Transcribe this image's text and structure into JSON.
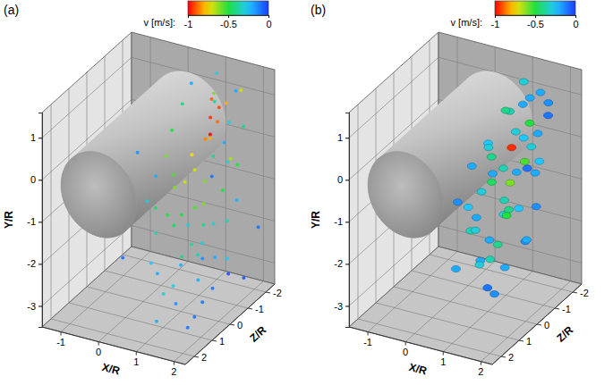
{
  "chart_data": [
    {
      "type": "scatter",
      "title": "(a)",
      "marker": "dot",
      "grid": true,
      "xlabel": "X/R",
      "ylabel": "Y/R",
      "zlabel": "Z/R",
      "xlim": [
        -1.5,
        2.3
      ],
      "ylim": [
        -3.5,
        1.6
      ],
      "zlim": [
        -2.5,
        2.5
      ],
      "xticks": [
        -1,
        0,
        1,
        2
      ],
      "yticks": [
        -3,
        -2,
        -1,
        0,
        1
      ],
      "zticks": [
        2,
        1,
        0,
        -1,
        -2
      ],
      "cylinder": {
        "x": 0,
        "y": 0,
        "radius": 1
      },
      "colorbar": {
        "label": "v [m/s]:",
        "range": [
          -1,
          0
        ],
        "ticks": [
          -1,
          -0.5,
          0
        ]
      },
      "x": [
        1.0,
        1.3,
        0.8,
        1.6,
        1.1,
        1.4,
        0.9,
        1.8,
        1.2,
        1.5,
        1.0,
        1.9,
        1.3,
        1.05,
        1.6,
        1.1,
        2.0,
        1.4,
        1.05,
        1.7,
        1.2,
        1.5,
        1.0,
        1.8,
        1.3,
        0.8,
        1.6,
        2.1,
        1.1,
        1.4,
        1.9,
        1.0,
        1.5,
        1.2,
        1.7,
        0.9,
        1.4,
        2.0,
        1.1,
        1.6,
        1.3,
        0.8,
        1.8,
        1.2,
        1.5,
        1.0,
        1.9,
        1.3,
        1.6,
        1.1,
        1.4,
        1.7,
        0.7,
        1.1,
        2.2,
        2.1,
        0.5,
        1.25,
        1.35,
        1.2,
        1.5,
        1.1,
        1.6,
        1.3,
        1.8,
        0.9,
        2.0,
        1.5,
        0.8,
        1.7
      ],
      "y": [
        1.4,
        1.3,
        1.2,
        1.2,
        1.0,
        0.9,
        0.9,
        0.8,
        0.7,
        0.6,
        0.5,
        0.5,
        0.4,
        0.3,
        0.2,
        0.1,
        0.1,
        0.0,
        -0.1,
        -0.2,
        -0.3,
        -0.4,
        -0.5,
        -0.5,
        -0.6,
        -0.7,
        -0.8,
        -0.9,
        -1.0,
        -1.1,
        -1.2,
        -1.3,
        -1.4,
        -1.5,
        -1.6,
        -1.7,
        -1.8,
        -1.9,
        -2.0,
        -2.1,
        -2.2,
        -2.3,
        -2.4,
        -2.5,
        -2.6,
        -2.7,
        -2.8,
        -2.9,
        -3.0,
        -3.1,
        -3.2,
        -3.3,
        0.9,
        -0.3,
        0.3,
        -2.0,
        -1.5,
        0.8,
        0.6,
        0.2,
        1.0,
        0.0,
        -0.6,
        -0.9,
        -1.5,
        -2.5,
        -3.0,
        -3.4,
        1.5,
        1.5
      ],
      "z": [
        -2.0,
        -1.2,
        -0.5,
        -1.8,
        -1.5,
        -0.8,
        0.3,
        -1.0,
        -2.1,
        -0.3,
        0.8,
        -1.6,
        -1.0,
        1.5,
        0.5,
        -0.4,
        -0.5,
        1.2,
        2.0,
        -1.3,
        0.2,
        1.8,
        -1.8,
        0.9,
        -0.7,
        1.0,
        0.0,
        -0.8,
        1.6,
        -1.5,
        1.3,
        0.4,
        -0.2,
        2.1,
        -1.1,
        -0.6,
        0.8,
        0.2,
        -1.6,
        1.7,
        -0.3,
        0.9,
        -0.9,
        1.4,
        0.1,
        -1.2,
        0.7,
        2.0,
        -0.5,
        0.5,
        -1.8,
        1.1,
        1.8,
        -2.2,
        0.8,
        -2.0,
        2.2,
        -1.6,
        -1.3,
        -1.2,
        -2.3,
        0.6,
        -1.9,
        0.6,
        0.5,
        -0.2,
        -1.4,
        0.3,
        -1.0,
        -0.4
      ],
      "values": [
        -0.3,
        -0.6,
        -0.4,
        -0.2,
        -0.9,
        -0.95,
        -0.5,
        -0.3,
        -0.8,
        -0.85,
        -0.6,
        -0.4,
        -1.0,
        -0.2,
        -0.7,
        -0.75,
        -0.3,
        -0.6,
        -0.3,
        -0.65,
        -0.7,
        -0.5,
        -0.4,
        -0.55,
        -0.6,
        -0.45,
        -0.6,
        -0.2,
        -0.35,
        -0.5,
        -0.4,
        -0.45,
        -0.4,
        -0.25,
        -0.35,
        -0.3,
        -0.4,
        -0.2,
        -0.3,
        -0.3,
        -0.35,
        -0.2,
        -0.25,
        -0.3,
        -0.2,
        -0.15,
        -0.1,
        -0.2,
        -0.1,
        -0.15,
        -0.05,
        -0.1,
        -0.15,
        -0.2,
        -0.1,
        -0.1,
        -0.1,
        -0.92,
        -0.88,
        -0.8,
        -0.7,
        -0.55,
        -0.5,
        -0.5,
        -0.3,
        -0.2,
        -0.05,
        -0.1,
        -0.2,
        -0.35
      ]
    },
    {
      "type": "scatter",
      "title": "(b)",
      "marker": "blob",
      "grid": true,
      "xlabel": "X/R",
      "ylabel": "Y/R",
      "zlabel": "Z/R",
      "xlim": [
        -1.5,
        2.3
      ],
      "ylim": [
        -3.5,
        1.6
      ],
      "zlim": [
        -2.5,
        2.5
      ],
      "xticks": [
        -1,
        0,
        1,
        2
      ],
      "yticks": [
        -3,
        -2,
        -1,
        0,
        1
      ],
      "zticks": [
        2,
        1,
        0,
        -1,
        -2
      ],
      "cylinder": {
        "x": 0,
        "y": 0,
        "radius": 1
      },
      "colorbar": {
        "label": "v [m/s]:",
        "range": [
          -1,
          0
        ],
        "ticks": [
          -1,
          -0.5,
          0
        ]
      },
      "x": [
        1.0,
        1.4,
        1.2,
        1.7,
        0.9,
        1.5,
        1.1,
        1.8,
        1.3,
        1.0,
        1.6,
        1.2,
        1.9,
        1.4,
        1.05,
        1.7,
        1.1,
        1.5,
        1.3,
        1.8,
        1.0,
        1.6,
        1.2,
        1.9,
        1.4,
        1.0,
        1.7,
        1.2,
        1.5,
        1.1,
        1.8,
        1.3,
        1.6,
        1.2,
        1.7,
        1.4,
        1.6,
        1.3,
        1.6,
        1.2,
        1.9,
        1.0,
        1.5,
        1.3,
        1.8,
        1.1,
        1.4,
        1.6,
        1.0,
        1.5
      ],
      "y": [
        1.2,
        1.1,
        1.0,
        0.9,
        0.8,
        0.7,
        0.6,
        0.5,
        0.4,
        0.3,
        0.2,
        0.1,
        0.0,
        -0.1,
        -0.2,
        -0.3,
        -0.4,
        -0.5,
        -0.6,
        -0.7,
        -0.8,
        -0.9,
        -1.0,
        -1.1,
        -1.2,
        -1.3,
        -1.4,
        -1.5,
        -1.6,
        -1.7,
        -1.8,
        -1.9,
        -2.0,
        -2.1,
        -2.2,
        -2.4,
        -2.6,
        0.9,
        0.5,
        -0.3,
        0.8,
        0.1,
        -0.2,
        0.7,
        -1.0,
        -1.1,
        -0.8,
        0.3,
        -0.6,
        1.2
      ],
      "z": [
        -2.0,
        -1.5,
        -0.8,
        -1.9,
        -1.2,
        -0.5,
        0.2,
        -1.1,
        -1.7,
        0.9,
        0.4,
        -0.9,
        -0.3,
        1.2,
        1.8,
        -1.4,
        0.0,
        1.7,
        -0.6,
        0.8,
        -1.6,
        0.1,
        1.4,
        -0.8,
        -0.2,
        0.7,
        1.9,
        -1.3,
        0.5,
        2.0,
        -0.4,
        1.1,
        -0.9,
        0.3,
        1.5,
        -0.1,
        0.9,
        -2.3,
        -2.1,
        -2.0,
        -0.1,
        -0.2,
        -1.0,
        0.6,
        1.6,
        -0.7,
        -1.8,
        1.0,
        1.1,
        -0.9
      ],
      "values": [
        -0.3,
        -0.2,
        -0.35,
        -0.15,
        -0.4,
        -0.3,
        -0.25,
        -0.2,
        -0.5,
        -0.2,
        -0.35,
        -0.95,
        -0.1,
        -0.3,
        -0.15,
        -0.25,
        -0.45,
        -0.2,
        -0.6,
        -0.3,
        -0.2,
        -0.4,
        -0.35,
        -0.15,
        -0.5,
        -0.3,
        -0.2,
        -0.25,
        -0.4,
        -0.2,
        -0.15,
        -0.3,
        -0.2,
        -0.35,
        -0.1,
        -0.2,
        -0.15,
        -0.2,
        -0.1,
        -0.3,
        -0.25,
        -0.4,
        -0.55,
        -0.3,
        -0.2,
        -0.35,
        -0.2,
        -0.2,
        -0.25,
        -0.2
      ]
    }
  ]
}
